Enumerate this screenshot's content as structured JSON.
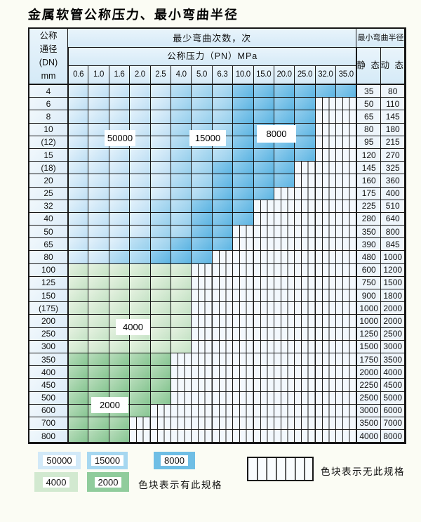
{
  "title": "金属软管公称压力、最小弯曲半径",
  "table": {
    "header": {
      "dn_lines": [
        "公称",
        "通径",
        "(DN)",
        "mm"
      ],
      "cycles_label": "最少弯曲次数，次",
      "pressure_label": "公称压力（PN）MPa",
      "pressure_values": [
        "0.6",
        "1.0",
        "1.6",
        "2.0",
        "2.5",
        "4.0",
        "5.0",
        "6.3",
        "10.0",
        "15.0",
        "20.0",
        "25.0",
        "32.0",
        "35.0"
      ],
      "radius_label": "最小弯曲半径",
      "static_label": "静 态",
      "dynamic_label": "动 态"
    },
    "rows": [
      {
        "dn": "4",
        "static": "35",
        "dynamic": "80",
        "palette": "blue",
        "light_end": 5,
        "med_end": 8,
        "color_end": 14
      },
      {
        "dn": "6",
        "static": "50",
        "dynamic": "110",
        "palette": "blue",
        "light_end": 5,
        "med_end": 8,
        "color_end": 12
      },
      {
        "dn": "8",
        "static": "65",
        "dynamic": "145",
        "palette": "blue",
        "light_end": 5,
        "med_end": 8,
        "color_end": 12
      },
      {
        "dn": "10",
        "static": "80",
        "dynamic": "180",
        "palette": "blue",
        "light_end": 5,
        "med_end": 8,
        "color_end": 12
      },
      {
        "dn": "(12)",
        "static": "95",
        "dynamic": "215",
        "palette": "blue",
        "light_end": 5,
        "med_end": 8,
        "color_end": 12
      },
      {
        "dn": "15",
        "static": "120",
        "dynamic": "270",
        "palette": "blue",
        "light_end": 5,
        "med_end": 8,
        "color_end": 12
      },
      {
        "dn": "(18)",
        "static": "145",
        "dynamic": "325",
        "palette": "blue",
        "light_end": 5,
        "med_end": 7,
        "color_end": 11
      },
      {
        "dn": "20",
        "static": "160",
        "dynamic": "360",
        "palette": "blue",
        "light_end": 5,
        "med_end": 7,
        "color_end": 11
      },
      {
        "dn": "25",
        "static": "175",
        "dynamic": "400",
        "palette": "blue",
        "light_end": 5,
        "med_end": 7,
        "color_end": 10
      },
      {
        "dn": "32",
        "static": "225",
        "dynamic": "510",
        "palette": "blue",
        "light_end": 4,
        "med_end": 6,
        "color_end": 9
      },
      {
        "dn": "40",
        "static": "280",
        "dynamic": "640",
        "palette": "blue",
        "light_end": 4,
        "med_end": 6,
        "color_end": 9
      },
      {
        "dn": "50",
        "static": "350",
        "dynamic": "800",
        "palette": "blue",
        "light_end": 4,
        "med_end": 6,
        "color_end": 8
      },
      {
        "dn": "65",
        "static": "390",
        "dynamic": "845",
        "palette": "blue",
        "light_end": 3,
        "med_end": 5,
        "color_end": 8
      },
      {
        "dn": "80",
        "static": "480",
        "dynamic": "1000",
        "palette": "blue",
        "light_end": 2,
        "med_end": 4,
        "color_end": 7
      },
      {
        "dn": "100",
        "static": "600",
        "dynamic": "1200",
        "palette": "green-light",
        "color_end": 6
      },
      {
        "dn": "125",
        "static": "750",
        "dynamic": "1500",
        "palette": "green-light",
        "color_end": 6
      },
      {
        "dn": "150",
        "static": "900",
        "dynamic": "1800",
        "palette": "green-light",
        "color_end": 6
      },
      {
        "dn": "(175)",
        "static": "1000",
        "dynamic": "2000",
        "palette": "green-light",
        "color_end": 6
      },
      {
        "dn": "200",
        "static": "1000",
        "dynamic": "2000",
        "palette": "green-light",
        "color_end": 6
      },
      {
        "dn": "250",
        "static": "1250",
        "dynamic": "2500",
        "palette": "green-light",
        "color_end": 6
      },
      {
        "dn": "300",
        "static": "1500",
        "dynamic": "3000",
        "palette": "green-light",
        "color_end": 6
      },
      {
        "dn": "350",
        "static": "1750",
        "dynamic": "3500",
        "palette": "green-dark",
        "color_end": 5
      },
      {
        "dn": "400",
        "static": "2000",
        "dynamic": "4000",
        "palette": "green-dark",
        "color_end": 5
      },
      {
        "dn": "450",
        "static": "2250",
        "dynamic": "4500",
        "palette": "green-dark",
        "color_end": 5
      },
      {
        "dn": "500",
        "static": "2500",
        "dynamic": "5000",
        "palette": "green-dark",
        "color_end": 5
      },
      {
        "dn": "600",
        "static": "3000",
        "dynamic": "6000",
        "palette": "green-dark",
        "color_end": 4
      },
      {
        "dn": "700",
        "static": "3500",
        "dynamic": "7000",
        "palette": "green-dark",
        "color_end": 3
      },
      {
        "dn": "800",
        "static": "4000",
        "dynamic": "8000",
        "palette": "green-dark",
        "color_end": 3
      }
    ],
    "overlay_labels": [
      {
        "id": "50000",
        "text": "50000"
      },
      {
        "id": "15000",
        "text": "15000"
      },
      {
        "id": "8000",
        "text": "8000"
      },
      {
        "id": "4000",
        "text": "4000"
      },
      {
        "id": "2000",
        "text": "2000"
      }
    ]
  },
  "legend": {
    "swatches": [
      {
        "text": "50000",
        "palette": "blue-light"
      },
      {
        "text": "15000",
        "palette": "blue-medium"
      },
      {
        "text": "8000",
        "palette": "blue-dark"
      },
      {
        "text": "4000",
        "palette": "green-light"
      },
      {
        "text": "2000",
        "palette": "green-dark"
      }
    ],
    "has_spec_note": "色块表示有此规格",
    "no_spec_note": "色块表示无此规格"
  },
  "colors": {
    "cycles_50000": "#d2e9f8",
    "cycles_15000": "#a6d7f0",
    "cycles_8000": "#6fbee5",
    "cycles_4000": "#d2e9d0",
    "cycles_2000": "#90cc9c",
    "grid_line": "#161616",
    "page_background": "#fbfcf4"
  }
}
